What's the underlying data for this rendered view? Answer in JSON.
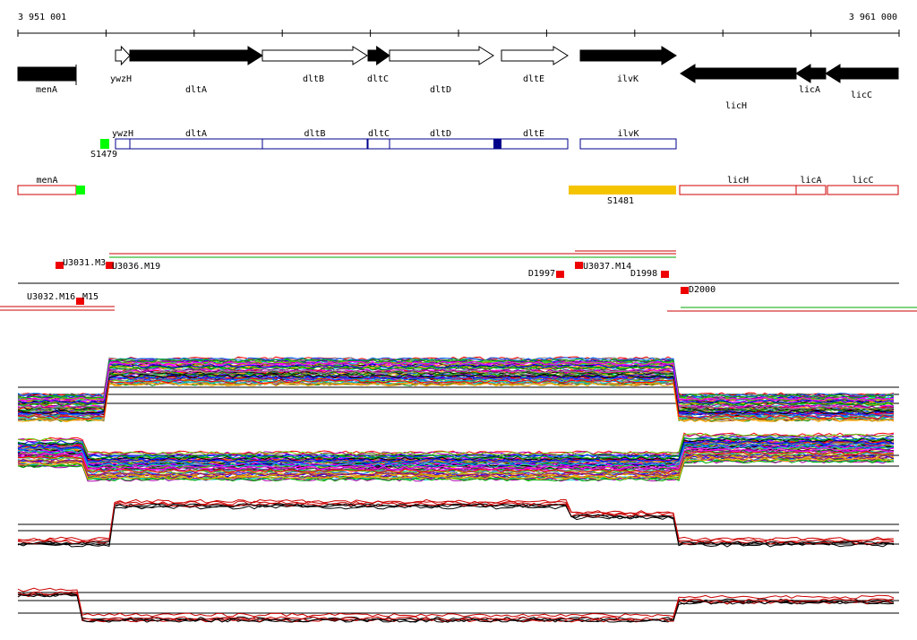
{
  "ruler": {
    "start": "3 951 001",
    "end": "3 961 000"
  },
  "genes": [
    "menA",
    "ywzH",
    "dltA",
    "dltB",
    "dltC",
    "dltD",
    "dltE",
    "ilvK",
    "licH",
    "licA",
    "licC"
  ],
  "track2": {
    "labels": [
      "ywzH",
      "dltA",
      "dltB",
      "dltC",
      "dltD",
      "dltE",
      "ilvK"
    ],
    "feature": "S1479"
  },
  "track3": {
    "labels": [
      "menA",
      "licH",
      "licA",
      "licC"
    ],
    "feature": "S1481"
  },
  "features": [
    "U3031.M3",
    "U3036.M19",
    "U3032.M16",
    "M15",
    "D1997",
    "U3037.M14",
    "D1998",
    "D2000"
  ]
}
